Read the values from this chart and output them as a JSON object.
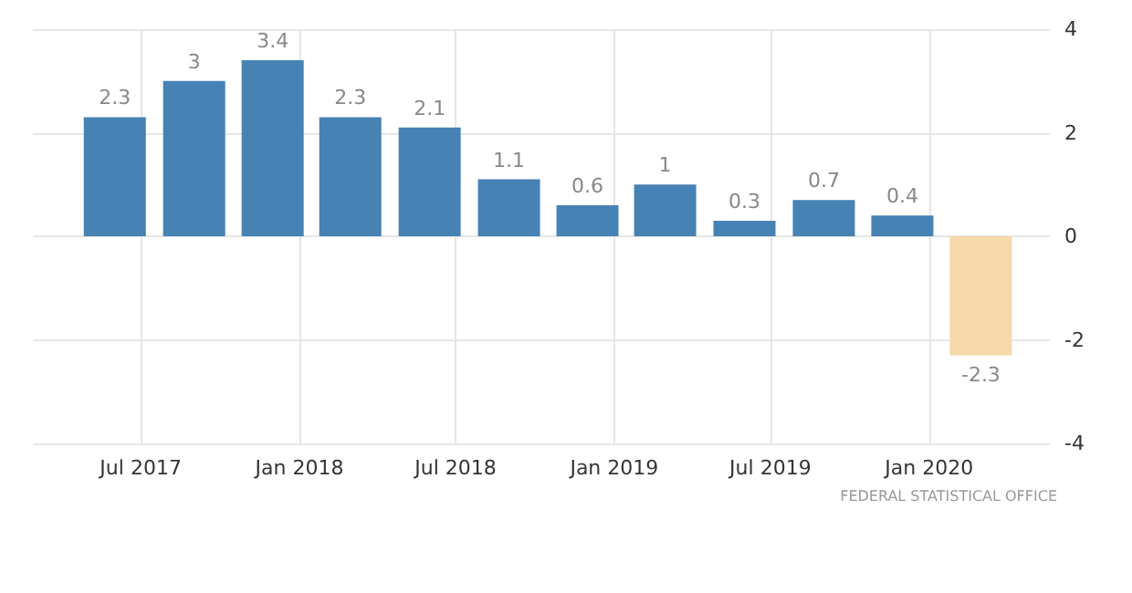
{
  "chart_data": {
    "type": "bar",
    "x": [
      "2017-06",
      "2017-09",
      "2017-12",
      "2018-03",
      "2018-06",
      "2018-09",
      "2018-12",
      "2019-03",
      "2019-06",
      "2019-09",
      "2019-12",
      "2020-03"
    ],
    "values": [
      2.3,
      3,
      3.4,
      2.3,
      2.1,
      1.1,
      0.6,
      1,
      0.3,
      0.7,
      0.4,
      -2.3
    ],
    "colors": [
      "#4682b4",
      "#4682b4",
      "#4682b4",
      "#4682b4",
      "#4682b4",
      "#4682b4",
      "#4682b4",
      "#4682b4",
      "#4682b4",
      "#4682b4",
      "#4682b4",
      "#f5d9a8"
    ],
    "data_labels": true,
    "xlim": [
      "2017-02-26",
      "2020-05-20"
    ],
    "xticks": [
      {
        "value": "2017-07",
        "label": "Jul 2017"
      },
      {
        "value": "2018-01",
        "label": "Jan 2018"
      },
      {
        "value": "2018-07",
        "label": "Jul 2018"
      },
      {
        "value": "2019-01",
        "label": "Jan 2019"
      },
      {
        "value": "2019-07",
        "label": "Jul 2019"
      },
      {
        "value": "2020-01",
        "label": "Jan 2020"
      }
    ],
    "ylim": [
      -4,
      4
    ],
    "yticks": [
      -4,
      -2,
      0,
      2,
      4
    ],
    "grid": true,
    "annotations": [
      "FEDERAL STATISTICAL OFFICE"
    ]
  }
}
